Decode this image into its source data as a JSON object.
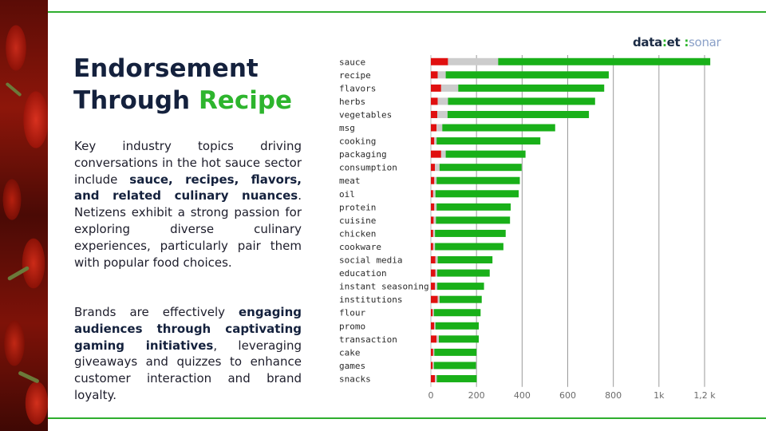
{
  "slide": {
    "title_line1": "Endorsement",
    "title_line2": "Through ",
    "title_highlight": "Recipe",
    "logo_part1": "data",
    "logo_sep": ":",
    "logo_part2": "et",
    "logo_part3": "sonar",
    "p1_a": "Key industry topics driving conversations in the hot sauce sector include ",
    "p1_b": "sauce, recipes, flavors, and related culinary nuances",
    "p1_c": ". Netizens exhibit a strong passion for exploring diverse culinary experiences, particularly pair them with popular food choices.",
    "p2_a": "Brands are effectively ",
    "p2_b": "engaging audiences through captivating gaming initiatives",
    "p2_c": ", leveraging giveaways and quizzes to enhance customer interaction and brand loyalty."
  },
  "colors": {
    "negative": "#e01010",
    "neutral": "#cccccc",
    "positive": "#19b019",
    "accent": "#2db52d",
    "title": "#14213d"
  },
  "chart_data": {
    "type": "bar",
    "orientation": "horizontal",
    "stacked": true,
    "categories": [
      "sauce",
      "recipe",
      "flavors",
      "herbs",
      "vegetables",
      "msg",
      "cooking",
      "packaging",
      "consumption",
      "meat",
      "oil",
      "protein",
      "cuisine",
      "chicken",
      "cookware",
      "social media",
      "education",
      "instant seasoning",
      "institutions",
      "flour",
      "promo",
      "transaction",
      "cake",
      "games",
      "snacks"
    ],
    "series": [
      {
        "color": "#e01010",
        "values": [
          75,
          30,
          45,
          30,
          28,
          25,
          15,
          45,
          18,
          15,
          10,
          15,
          12,
          10,
          10,
          20,
          20,
          18,
          30,
          8,
          15,
          25,
          10,
          8,
          18
        ]
      },
      {
        "color": "#cccccc",
        "values": [
          220,
          35,
          75,
          45,
          45,
          25,
          10,
          20,
          20,
          10,
          10,
          10,
          10,
          8,
          8,
          10,
          8,
          10,
          8,
          5,
          5,
          10,
          5,
          5,
          8
        ]
      },
      {
        "color": "#19b019",
        "values": [
          930,
          715,
          640,
          645,
          620,
          495,
          455,
          350,
          360,
          365,
          365,
          325,
          325,
          310,
          300,
          240,
          230,
          205,
          185,
          205,
          190,
          175,
          185,
          185,
          175
        ]
      }
    ],
    "xlim": [
      0,
      1200
    ],
    "xticks": [
      "0",
      "200",
      "400",
      "600",
      "800",
      "1k",
      "1,2 k"
    ],
    "xtick_values": [
      0,
      200,
      400,
      600,
      800,
      1000,
      1200
    ],
    "grid": true
  }
}
